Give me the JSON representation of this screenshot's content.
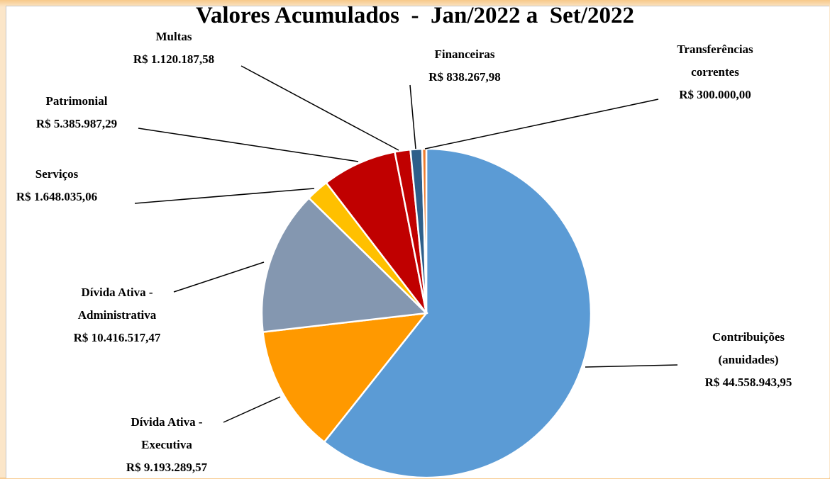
{
  "chart_data": {
    "type": "pie",
    "title": "Valores Acumulados  -  Jan/2022 a  Set/2022",
    "categories": [
      "Contribuições (anuidades)",
      "Dívida Ativa - Executiva",
      "Dívida Ativa - Administrativa",
      "Serviços",
      "Patrimonial",
      "Multas",
      "Financeiras",
      "Transferências correntes"
    ],
    "values": [
      44558943.95,
      9193289.57,
      10416517.47,
      1648035.06,
      5385987.29,
      1120187.58,
      838267.98,
      300000.0
    ],
    "value_labels": [
      "R$ 44.558.943,95",
      "R$ 9.193.289,57",
      "R$ 10.416.517,47",
      "R$ 1.648.035,06",
      "R$ 5.385.987,29",
      "R$ 1.120.187,58",
      "R$ 838.267,98",
      "R$ 300.000,00"
    ],
    "colors": [
      "#5b9bd5",
      "#ff9900",
      "#8497b0",
      "#ffc000",
      "#c00000",
      "#c00000",
      "#2e5f8a",
      "#ed7d31"
    ]
  }
}
